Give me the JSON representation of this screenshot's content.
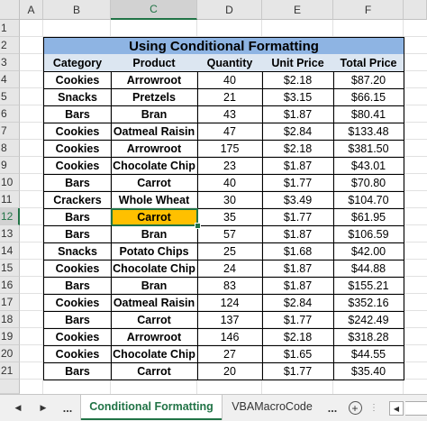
{
  "columns": [
    "A",
    "B",
    "C",
    "D",
    "E",
    "F"
  ],
  "rows": [
    1,
    2,
    3,
    4,
    5,
    6,
    7,
    8,
    9,
    10,
    11,
    12,
    13,
    14,
    15,
    16,
    17,
    18,
    19,
    20,
    21
  ],
  "selected_column": "C",
  "selected_row": 12,
  "table": {
    "title": "Using Conditional Formatting",
    "headers": [
      "Category",
      "Product",
      "Quantity",
      "Unit Price",
      "Total Price"
    ],
    "rows": [
      [
        "Cookies",
        "Arrowroot",
        "40",
        "$2.18",
        "$87.20"
      ],
      [
        "Snacks",
        "Pretzels",
        "21",
        "$3.15",
        "$66.15"
      ],
      [
        "Bars",
        "Bran",
        "43",
        "$1.87",
        "$80.41"
      ],
      [
        "Cookies",
        "Oatmeal Raisin",
        "47",
        "$2.84",
        "$133.48"
      ],
      [
        "Cookies",
        "Arrowroot",
        "175",
        "$2.18",
        "$381.50"
      ],
      [
        "Cookies",
        "Chocolate Chip",
        "23",
        "$1.87",
        "$43.01"
      ],
      [
        "Bars",
        "Carrot",
        "40",
        "$1.77",
        "$70.80"
      ],
      [
        "Crackers",
        "Whole Wheat",
        "30",
        "$3.49",
        "$104.70"
      ],
      [
        "Bars",
        "Carrot",
        "35",
        "$1.77",
        "$61.95"
      ],
      [
        "Bars",
        "Bran",
        "57",
        "$1.87",
        "$106.59"
      ],
      [
        "Snacks",
        "Potato Chips",
        "25",
        "$1.68",
        "$42.00"
      ],
      [
        "Cookies",
        "Chocolate Chip",
        "24",
        "$1.87",
        "$44.88"
      ],
      [
        "Bars",
        "Bran",
        "83",
        "$1.87",
        "$155.21"
      ],
      [
        "Cookies",
        "Oatmeal Raisin",
        "124",
        "$2.84",
        "$352.16"
      ],
      [
        "Bars",
        "Carrot",
        "137",
        "$1.77",
        "$242.49"
      ],
      [
        "Cookies",
        "Arrowroot",
        "146",
        "$2.18",
        "$318.28"
      ],
      [
        "Cookies",
        "Chocolate Chip",
        "27",
        "$1.65",
        "$44.55"
      ],
      [
        "Bars",
        "Carrot",
        "20",
        "$1.77",
        "$35.40"
      ]
    ],
    "highlighted_row": 8,
    "highlight_color": "#ffc000",
    "title_color": "#8eb4e3",
    "header_color": "#dce6f1"
  },
  "tabbar": {
    "nav_prev": "◀",
    "nav_next": "▶",
    "ellipsis_left": "...",
    "tabs": [
      "Conditional Formatting",
      "VBAMacroCode"
    ],
    "active_tab": 0,
    "ellipsis_right": "...",
    "add_symbol": "+",
    "accent": "#217346"
  }
}
